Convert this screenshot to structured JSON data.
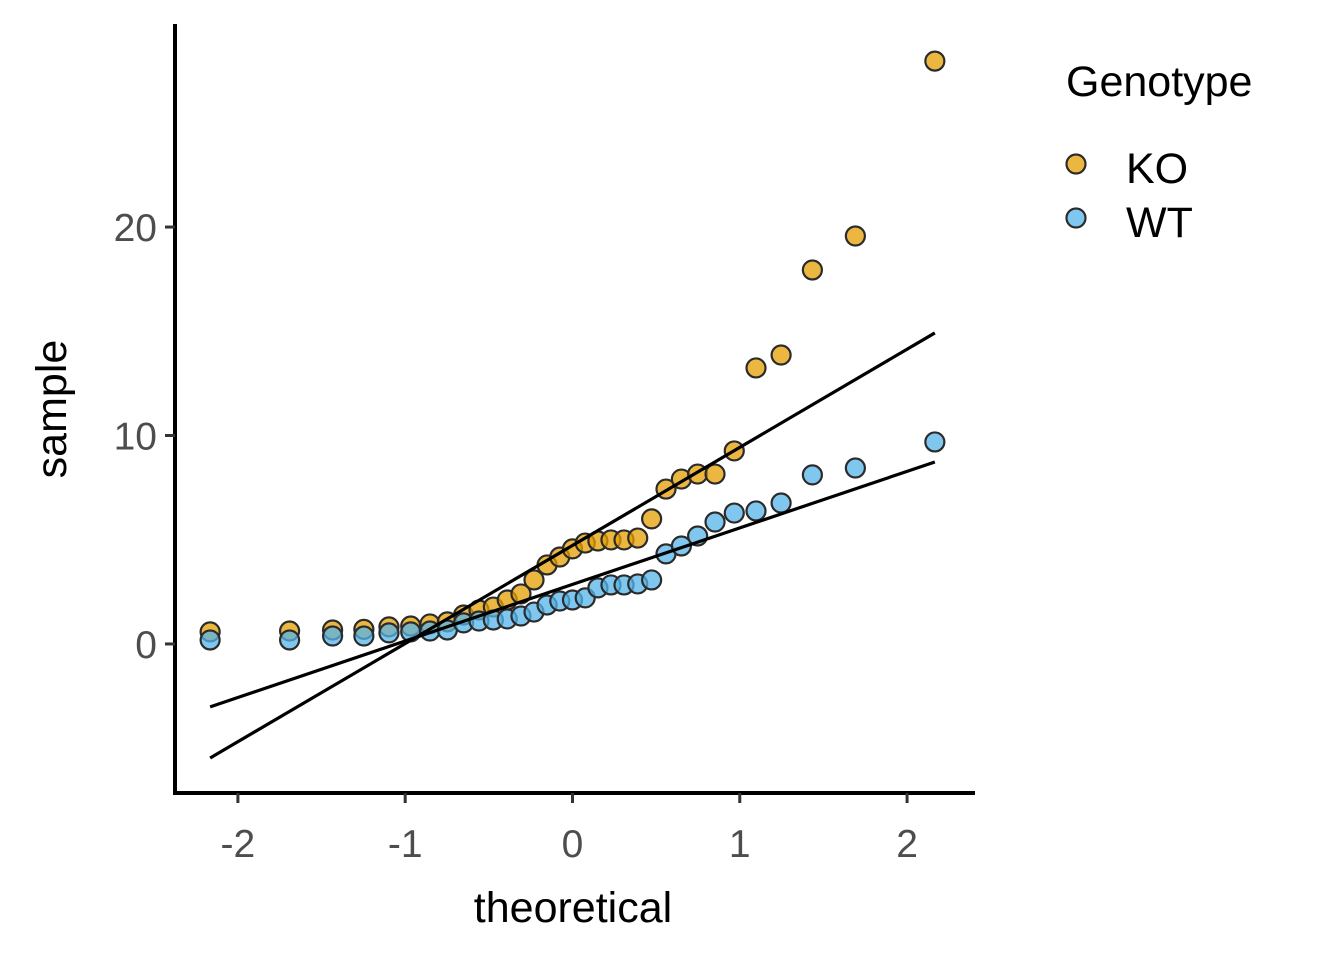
{
  "chart_data": {
    "type": "scatter",
    "subtype": "qq-plot",
    "title": "",
    "xlabel": "theoretical",
    "ylabel": "sample",
    "xlim": [
      -2.376,
      2.406
    ],
    "ylim": [
      -7.15,
      29.74
    ],
    "x_ticks": [
      -2,
      -1,
      0,
      1,
      2
    ],
    "x_tick_labels": [
      "-2",
      "-1",
      "0",
      "1",
      "2"
    ],
    "y_ticks": [
      0,
      10,
      20
    ],
    "y_tick_labels": [
      "0",
      "10",
      "20"
    ],
    "grid": false,
    "legend": {
      "title": "Genotype",
      "placement": "right-top",
      "entries": [
        "KO",
        "WT"
      ]
    },
    "theoretical": [
      -2.166,
      -1.691,
      -1.434,
      -1.247,
      -1.097,
      -0.967,
      -0.852,
      -0.748,
      -0.651,
      -0.559,
      -0.473,
      -0.39,
      -0.308,
      -0.23,
      -0.152,
      -0.076,
      0,
      0.076,
      0.152,
      0.23,
      0.308,
      0.39,
      0.473,
      0.559,
      0.651,
      0.748,
      0.852,
      0.967,
      1.097,
      1.247,
      1.434,
      1.691,
      2.166
    ],
    "series": [
      {
        "name": "KO",
        "color": "#E69F00",
        "sample": [
          0.58,
          0.62,
          0.67,
          0.7,
          0.82,
          0.86,
          0.96,
          1.06,
          1.39,
          1.63,
          1.77,
          2.11,
          2.4,
          3.07,
          3.79,
          4.17,
          4.56,
          4.84,
          4.94,
          4.99,
          4.99,
          5.08,
          6.0,
          7.43,
          7.91,
          8.15,
          8.15,
          9.26,
          13.24,
          13.86,
          17.94,
          19.57,
          27.96
        ],
        "reference_line": {
          "x": [
            -2.166,
            2.166
          ],
          "y": [
            -5.47,
            14.92
          ]
        }
      },
      {
        "name": "WT",
        "color": "#56B4E9",
        "sample": [
          0.19,
          0.19,
          0.38,
          0.38,
          0.53,
          0.58,
          0.62,
          0.67,
          1.01,
          1.1,
          1.15,
          1.2,
          1.34,
          1.53,
          1.87,
          2.06,
          2.11,
          2.21,
          2.69,
          2.83,
          2.83,
          2.88,
          3.07,
          4.32,
          4.7,
          5.18,
          5.85,
          6.28,
          6.38,
          6.76,
          8.11,
          8.44,
          9.69
        ],
        "reference_line": {
          "x": [
            -2.166,
            2.166
          ],
          "y": [
            -3.02,
            8.73
          ]
        }
      }
    ]
  }
}
